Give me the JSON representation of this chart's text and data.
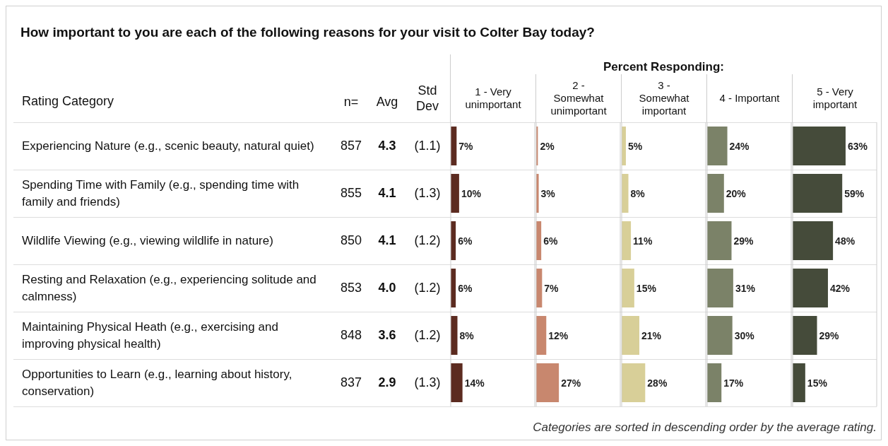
{
  "chart_data": [
    {
      "type": "other",
      "title": "How important to you are each of the following reasons for your visit to Colter Bay today?",
      "subtitle": "Percent Responding:",
      "ylabel": "Rating Category",
      "categories": [
        "Experiencing Nature (e.g., scenic beauty, natural quiet)",
        "Spending Time with Family (e.g., spending time with family and friends)",
        "Wildlife Viewing (e.g., viewing wildlife in nature)",
        "Resting and Relaxation (e.g., experiencing solitude and calmness)",
        "Maintaining Physical Heath (e.g., exercising and improving physical health)",
        "Opportunities to Learn (e.g., learning about history, conservation)"
      ],
      "series": [
        {
          "name": "n=",
          "values": [
            857,
            855,
            850,
            853,
            848,
            837
          ],
          "value_labels": [
            "857",
            "855",
            "850",
            "853",
            "848",
            "837"
          ]
        },
        {
          "name": "Avg",
          "values": [
            4.3,
            4.1,
            4.1,
            4.0,
            3.6,
            2.9
          ],
          "value_labels": [
            "4.3",
            "4.1",
            "4.1",
            "4.0",
            "3.6",
            "2.9"
          ]
        },
        {
          "name": "Std Dev",
          "values": [
            1.1,
            1.3,
            1.2,
            1.2,
            1.2,
            1.3
          ],
          "value_labels": [
            "(1.1)",
            "(1.3)",
            "(1.2)",
            "(1.2)",
            "(1.2)",
            "(1.3)"
          ]
        }
      ],
      "annotations": [
        "Categories are sorted in descending order by the average rating."
      ]
    },
    {
      "type": "bar",
      "orientation": "horizontal",
      "title": "1 - Very unimportant",
      "categories": [
        null,
        null,
        null,
        null,
        null,
        null
      ],
      "values": [
        7,
        10,
        6,
        6,
        8,
        14
      ],
      "value_labels": [
        "7%",
        "10%",
        "6%",
        "6%",
        "8%",
        "14%"
      ],
      "color": "#5c2b20",
      "xlim": [
        0,
        100
      ],
      "tick_labels": false
    },
    {
      "type": "bar",
      "orientation": "horizontal",
      "title": "2 - Somewhat unimportant",
      "categories": [
        null,
        null,
        null,
        null,
        null,
        null
      ],
      "values": [
        2,
        3,
        6,
        7,
        12,
        27
      ],
      "value_labels": [
        "2%",
        "3%",
        "6%",
        "7%",
        "12%",
        "27%"
      ],
      "color": "#c8876e",
      "xlim": [
        0,
        100
      ],
      "tick_labels": false
    },
    {
      "type": "bar",
      "orientation": "horizontal",
      "title": "3 - Somewhat important",
      "categories": [
        null,
        null,
        null,
        null,
        null,
        null
      ],
      "values": [
        5,
        8,
        11,
        15,
        21,
        28
      ],
      "value_labels": [
        "5%",
        "8%",
        "11%",
        "15%",
        "21%",
        "28%"
      ],
      "color": "#d8cf98",
      "xlim": [
        0,
        100
      ],
      "tick_labels": false
    },
    {
      "type": "bar",
      "orientation": "horizontal",
      "title": "4 - Important",
      "categories": [
        null,
        null,
        null,
        null,
        null,
        null
      ],
      "values": [
        24,
        20,
        29,
        31,
        30,
        17
      ],
      "value_labels": [
        "24%",
        "20%",
        "29%",
        "31%",
        "30%",
        "17%"
      ],
      "color": "#7b8268",
      "xlim": [
        0,
        100
      ],
      "tick_labels": false
    },
    {
      "type": "bar",
      "orientation": "horizontal",
      "title": "5 - Very important",
      "categories": [
        null,
        null,
        null,
        null,
        null,
        null
      ],
      "values": [
        63,
        59,
        48,
        42,
        29,
        15
      ],
      "value_labels": [
        "63%",
        "59%",
        "48%",
        "42%",
        "29%",
        "15%"
      ],
      "color": "#454b3a",
      "xlim": [
        0,
        100
      ],
      "tick_labels": false
    }
  ]
}
